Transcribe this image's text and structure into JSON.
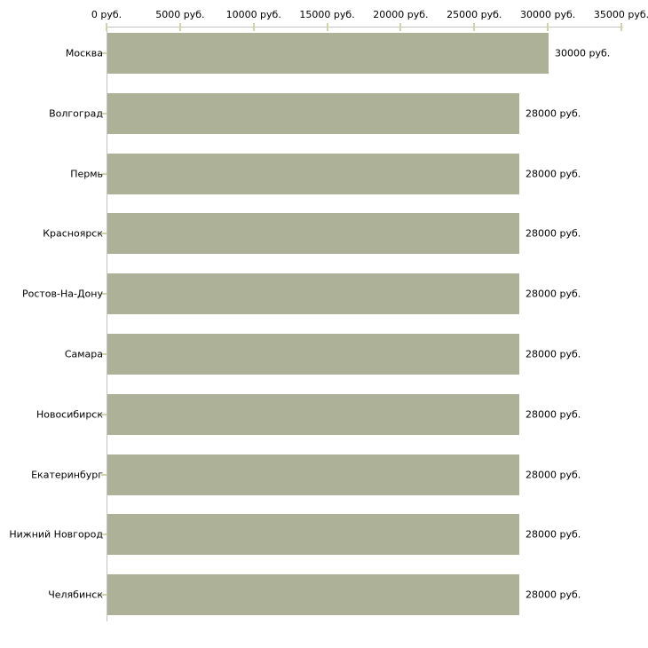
{
  "chart_data": {
    "type": "bar",
    "orientation": "horizontal",
    "title": "",
    "xlabel": "",
    "ylabel": "",
    "unit": "руб.",
    "categories": [
      "Москва",
      "Волгоград",
      "Пермь",
      "Красноярск",
      "Ростов-На-Дону",
      "Самара",
      "Новосибирск",
      "Екатеринбург",
      "Нижний Новгород",
      "Челябинск"
    ],
    "values": [
      30000,
      28000,
      28000,
      28000,
      28000,
      28000,
      28000,
      28000,
      28000,
      28000
    ],
    "value_labels": [
      "30000 руб.",
      "28000 руб.",
      "28000 руб.",
      "28000 руб.",
      "28000 руб.",
      "28000 руб.",
      "28000 руб.",
      "28000 руб.",
      "28000 руб.",
      "28000 руб."
    ],
    "xlim": [
      0,
      35000
    ],
    "x_ticks": [
      0,
      5000,
      10000,
      15000,
      20000,
      25000,
      30000,
      35000
    ],
    "x_tick_labels": [
      "0 руб.",
      "5000 руб.",
      "10000 руб.",
      "15000 руб.",
      "20000 руб.",
      "25000 руб.",
      "30000 руб.",
      "35000 руб."
    ],
    "grid": false,
    "legend": null,
    "colors": {
      "bar_fill": "#acb198",
      "axis_line": "#c3c3c3",
      "tick_mark": "#d0d3a6",
      "text": "#000000",
      "background": "#ffffff"
    }
  }
}
